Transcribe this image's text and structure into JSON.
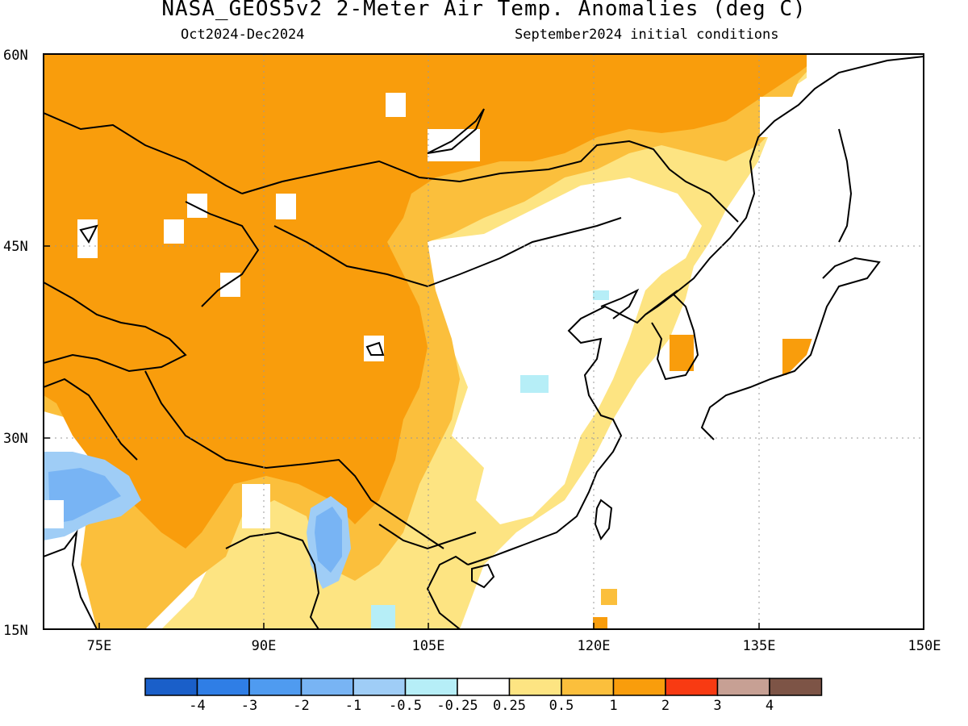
{
  "title": "NASA_GEOS5v2 2-Meter Air Temp. Anomalies (deg C)",
  "subtitle_left": "Oct2024-Dec2024",
  "subtitle_right": "September2024 initial conditions",
  "map": {
    "lat_labels": [
      "60N",
      "45N",
      "30N",
      "15N"
    ],
    "lon_labels": [
      "75E",
      "90E",
      "105E",
      "120E",
      "135E",
      "150E"
    ],
    "extent": {
      "lon": [
        70,
        150
      ],
      "lat": [
        15,
        60
      ]
    },
    "gridlines": "dotted"
  },
  "legend": {
    "labels": [
      "-4",
      "-3",
      "-2",
      "-1",
      "-0.5",
      "-0.25",
      "0.25",
      "0.5",
      "1",
      "2",
      "3",
      "4"
    ],
    "colors": [
      "#1a5fc9",
      "#2f7ee6",
      "#4f9bf0",
      "#78b4f4",
      "#9fcdf6",
      "#b6eef7",
      "#ffffff",
      "#fde482",
      "#fbbf3c",
      "#f99d0c",
      "#f83a12",
      "#c7a094",
      "#7d5446"
    ]
  }
}
